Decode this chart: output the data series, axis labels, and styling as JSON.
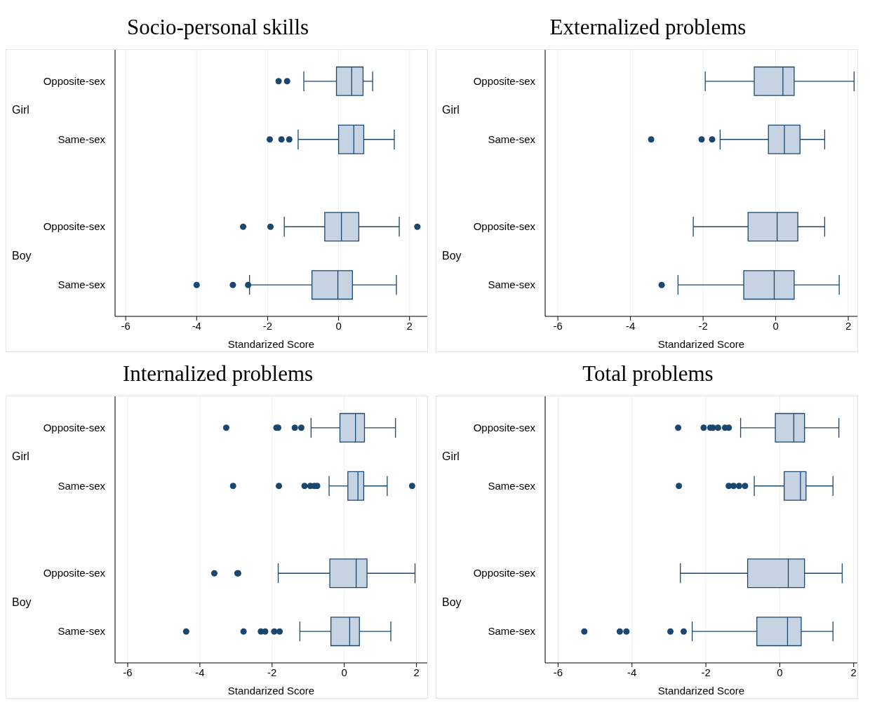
{
  "chart_data": [
    {
      "type": "box",
      "orientation": "horizontal",
      "title": "Socio-personal skills",
      "xlabel": "Standarized Score",
      "categories": [
        "Opposite-sex",
        "Same-sex",
        "Opposite-sex",
        "Same-sex"
      ],
      "annotations": [
        "Girl",
        "Boy"
      ],
      "color": "#1a476f",
      "xlim": [
        -6.3,
        2.5
      ],
      "xticks": [
        -6,
        -4,
        -2,
        0,
        2
      ],
      "grid": "x",
      "boxes": [
        {
          "low": -0.98,
          "q1": -0.06,
          "median": 0.37,
          "q3": 0.69,
          "high": 0.96,
          "outliers": [
            -1.69,
            -1.45
          ]
        },
        {
          "low": -1.14,
          "q1": 0,
          "median": 0.43,
          "q3": 0.71,
          "high": 1.57,
          "outliers": [
            -1.94,
            -1.61,
            -1.39
          ]
        },
        {
          "low": -1.53,
          "q1": -0.39,
          "median": 0.08,
          "q3": 0.57,
          "high": 1.71,
          "outliers": [
            -2.69,
            -1.92,
            2.22
          ]
        },
        {
          "low": -2.51,
          "q1": -0.75,
          "median": -0.02,
          "q3": 0.39,
          "high": 1.63,
          "outliers": [
            -4.0,
            -2.98,
            -2.55
          ]
        }
      ]
    },
    {
      "type": "box",
      "orientation": "horizontal",
      "title": "Externalized problems",
      "xlabel": "Standarized Score",
      "categories": [
        "Opposite-sex",
        "Same-sex",
        "Opposite-sex",
        "Same-sex"
      ],
      "annotations": [
        "Girl",
        "Boy"
      ],
      "color": "#1a476f",
      "xlim": [
        -6.35,
        2.25
      ],
      "xticks": [
        -6,
        -4,
        -2,
        0,
        2
      ],
      "grid": "x",
      "boxes": [
        {
          "low": -1.94,
          "q1": -0.59,
          "median": 0.2,
          "q3": 0.51,
          "high": 2.16
        },
        {
          "low": -1.53,
          "q1": -0.2,
          "median": 0.24,
          "q3": 0.67,
          "high": 1.35,
          "outliers": [
            -3.43,
            -2.04,
            -1.75
          ]
        },
        {
          "low": -2.27,
          "q1": -0.76,
          "median": 0.04,
          "q3": 0.61,
          "high": 1.35
        },
        {
          "low": -2.69,
          "q1": -0.88,
          "median": -0.04,
          "q3": 0.51,
          "high": 1.75,
          "outliers": [
            -3.14
          ]
        }
      ]
    },
    {
      "type": "box",
      "orientation": "horizontal",
      "title": "Internalized problems",
      "xlabel": "Standarized Score",
      "categories": [
        "Opposite-sex",
        "Same-sex",
        "Opposite-sex",
        "Same-sex"
      ],
      "annotations": [
        "Girl",
        "Boy"
      ],
      "color": "#1a476f",
      "xlim": [
        -6.35,
        2.3
      ],
      "xticks": [
        -6,
        -4,
        -2,
        0,
        2
      ],
      "grid": "x",
      "boxes": [
        {
          "low": -0.92,
          "q1": -0.12,
          "median": 0.31,
          "q3": 0.56,
          "high": 1.42,
          "outliers": [
            -3.27,
            -1.88,
            -1.83,
            -1.37,
            -1.19
          ]
        },
        {
          "low": -0.42,
          "q1": 0.1,
          "median": 0.38,
          "q3": 0.54,
          "high": 1.19,
          "outliers": [
            -3.08,
            -1.81,
            -1.1,
            -0.94,
            -0.83,
            -0.75,
            1.88
          ]
        },
        {
          "low": -1.83,
          "q1": -0.4,
          "median": 0.33,
          "q3": 0.63,
          "high": 1.96,
          "outliers": [
            -3.6,
            -2.96,
            -2.94
          ]
        },
        {
          "low": -1.23,
          "q1": -0.37,
          "median": 0.15,
          "q3": 0.42,
          "high": 1.29,
          "outliers": [
            -4.38,
            -2.79,
            -2.31,
            -2.19,
            -1.94,
            -1.79
          ]
        }
      ]
    },
    {
      "type": "box",
      "orientation": "horizontal",
      "title": "Total problems",
      "xlabel": "Standarized Score",
      "categories": [
        "Opposite-sex",
        "Same-sex",
        "Opposite-sex",
        "Same-sex"
      ],
      "annotations": [
        "Girl",
        "Boy"
      ],
      "color": "#1a476f",
      "xlim": [
        -6.35,
        2.1
      ],
      "xticks": [
        -6,
        -4,
        -2,
        0,
        2
      ],
      "grid": "x",
      "boxes": [
        {
          "low": -1.06,
          "q1": -0.12,
          "median": 0.38,
          "q3": 0.67,
          "high": 1.6,
          "outliers": [
            -2.75,
            -2.06,
            -1.88,
            -1.81,
            -1.67,
            -1.48,
            -1.38
          ]
        },
        {
          "low": -0.69,
          "q1": 0.12,
          "median": 0.56,
          "q3": 0.71,
          "high": 1.44,
          "outliers": [
            -2.73,
            -1.38,
            -1.25,
            -1.1,
            -0.94
          ]
        },
        {
          "low": -2.69,
          "q1": -0.87,
          "median": 0.23,
          "q3": 0.67,
          "high": 1.69
        },
        {
          "low": -2.37,
          "q1": -0.62,
          "median": 0.21,
          "q3": 0.58,
          "high": 1.44,
          "outliers": [
            -5.29,
            -4.33,
            -4.15,
            -2.96,
            -2.6
          ]
        }
      ]
    }
  ]
}
